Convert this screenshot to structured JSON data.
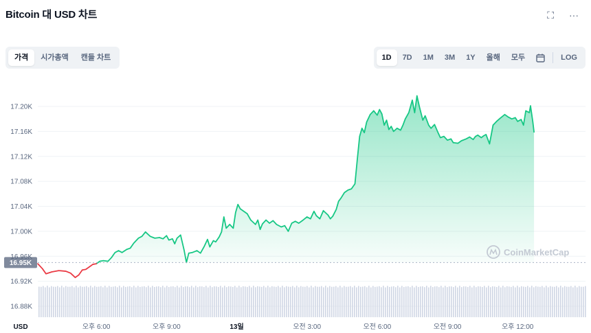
{
  "header": {
    "title": "Bitcoin 대 USD 차트",
    "fullscreen_icon": "fullscreen-icon",
    "more_icon": "more-icon"
  },
  "tabs": [
    {
      "label": "가격",
      "active": true
    },
    {
      "label": "시가총액",
      "active": false
    },
    {
      "label": "캔들 차트",
      "active": false
    }
  ],
  "ranges": [
    {
      "label": "1D",
      "active": true
    },
    {
      "label": "7D",
      "active": false
    },
    {
      "label": "1M",
      "active": false
    },
    {
      "label": "3M",
      "active": false
    },
    {
      "label": "1Y",
      "active": false
    },
    {
      "label": "올해",
      "active": false
    },
    {
      "label": "모두",
      "active": false
    }
  ],
  "calendar_icon": "calendar-icon",
  "log_label": "LOG",
  "watermark": "CoinMarketCap",
  "colors": {
    "up": "#16c784",
    "down": "#ea3943",
    "grid": "#eff2f5",
    "volume": "#cfd6e4"
  },
  "chart_data": {
    "type": "area",
    "title": "Bitcoin 대 USD 차트",
    "currency_label": "USD",
    "y_ticks": [
      "17.20K",
      "17.16K",
      "17.12K",
      "17.08K",
      "17.04K",
      "17.00K",
      "16.96K",
      "16.92K",
      "16.88K"
    ],
    "y_tick_values": [
      17200,
      17160,
      17120,
      17080,
      17040,
      17000,
      16960,
      16920,
      16880
    ],
    "ylim": [
      16870,
      17225
    ],
    "reference_price": 16950,
    "reference_label": "16.95K",
    "x_ticks": [
      {
        "label": "오후 6:00",
        "t": 2.5,
        "bold": false
      },
      {
        "label": "오후 9:00",
        "t": 5.5,
        "bold": false
      },
      {
        "label": "13일",
        "t": 8.5,
        "bold": true
      },
      {
        "label": "오전 3:00",
        "t": 11.5,
        "bold": false
      },
      {
        "label": "오전 6:00",
        "t": 14.5,
        "bold": false
      },
      {
        "label": "오전 9:00",
        "t": 17.5,
        "bold": false
      },
      {
        "label": "오후 12:00",
        "t": 20.5,
        "bold": false
      }
    ],
    "xlim": [
      0,
      23.4
    ],
    "series": [
      {
        "points": [
          [
            0.0,
            16948
          ],
          [
            0.2,
            16940
          ],
          [
            0.35,
            16932
          ],
          [
            0.6,
            16935
          ],
          [
            0.9,
            16937
          ],
          [
            1.2,
            16936
          ],
          [
            1.4,
            16933
          ],
          [
            1.6,
            16926
          ],
          [
            1.75,
            16930
          ],
          [
            1.9,
            16938
          ],
          [
            2.05,
            16939
          ],
          [
            2.2,
            16943
          ],
          [
            2.35,
            16947
          ],
          [
            2.5,
            16948
          ],
          [
            2.65,
            16952
          ],
          [
            2.8,
            16953
          ],
          [
            3.0,
            16952
          ],
          [
            3.15,
            16958
          ],
          [
            3.3,
            16966
          ],
          [
            3.45,
            16969
          ],
          [
            3.6,
            16966
          ],
          [
            3.8,
            16971
          ],
          [
            3.95,
            16973
          ],
          [
            4.1,
            16981
          ],
          [
            4.3,
            16989
          ],
          [
            4.45,
            16992
          ],
          [
            4.6,
            16999
          ],
          [
            4.8,
            16992
          ],
          [
            5.0,
            16989
          ],
          [
            5.2,
            16990
          ],
          [
            5.35,
            16988
          ],
          [
            5.5,
            16993
          ],
          [
            5.6,
            16986
          ],
          [
            5.75,
            16988
          ],
          [
            5.85,
            16980
          ],
          [
            5.95,
            16989
          ],
          [
            6.1,
            16994
          ],
          [
            6.25,
            16970
          ],
          [
            6.35,
            16950
          ],
          [
            6.45,
            16965
          ],
          [
            6.6,
            16966
          ],
          [
            6.8,
            16969
          ],
          [
            6.95,
            16965
          ],
          [
            7.1,
            16975
          ],
          [
            7.25,
            16987
          ],
          [
            7.35,
            16975
          ],
          [
            7.5,
            16985
          ],
          [
            7.6,
            16983
          ],
          [
            7.75,
            16991
          ],
          [
            7.85,
            16999
          ],
          [
            7.95,
            17023
          ],
          [
            8.05,
            17005
          ],
          [
            8.2,
            17011
          ],
          [
            8.35,
            17005
          ],
          [
            8.45,
            17030
          ],
          [
            8.55,
            17043
          ],
          [
            8.65,
            17036
          ],
          [
            8.8,
            17032
          ],
          [
            8.95,
            17028
          ],
          [
            9.1,
            17018
          ],
          [
            9.3,
            17011
          ],
          [
            9.4,
            17018
          ],
          [
            9.5,
            17003
          ],
          [
            9.6,
            17012
          ],
          [
            9.75,
            17018
          ],
          [
            9.9,
            17013
          ],
          [
            10.05,
            17017
          ],
          [
            10.2,
            17011
          ],
          [
            10.4,
            17007
          ],
          [
            10.55,
            17009
          ],
          [
            10.7,
            17000
          ],
          [
            10.85,
            17013
          ],
          [
            11.0,
            17016
          ],
          [
            11.15,
            17013
          ],
          [
            11.3,
            17017
          ],
          [
            11.5,
            17023
          ],
          [
            11.65,
            17020
          ],
          [
            11.8,
            17032
          ],
          [
            11.9,
            17025
          ],
          [
            12.05,
            17020
          ],
          [
            12.2,
            17033
          ],
          [
            12.4,
            17026
          ],
          [
            12.5,
            17020
          ],
          [
            12.6,
            17024
          ],
          [
            12.75,
            17035
          ],
          [
            12.85,
            17048
          ],
          [
            12.95,
            17053
          ],
          [
            13.1,
            17062
          ],
          [
            13.25,
            17066
          ],
          [
            13.4,
            17068
          ],
          [
            13.55,
            17076
          ],
          [
            13.65,
            17115
          ],
          [
            13.75,
            17152
          ],
          [
            13.85,
            17165
          ],
          [
            13.95,
            17158
          ],
          [
            14.05,
            17175
          ],
          [
            14.2,
            17187
          ],
          [
            14.35,
            17193
          ],
          [
            14.5,
            17186
          ],
          [
            14.6,
            17195
          ],
          [
            14.7,
            17188
          ],
          [
            14.8,
            17170
          ],
          [
            14.9,
            17178
          ],
          [
            15.0,
            17163
          ],
          [
            15.1,
            17168
          ],
          [
            15.2,
            17160
          ],
          [
            15.35,
            17165
          ],
          [
            15.5,
            17162
          ],
          [
            15.6,
            17170
          ],
          [
            15.7,
            17180
          ],
          [
            15.85,
            17190
          ],
          [
            16.0,
            17210
          ],
          [
            16.1,
            17190
          ],
          [
            16.2,
            17217
          ],
          [
            16.3,
            17200
          ],
          [
            16.45,
            17178
          ],
          [
            16.55,
            17185
          ],
          [
            16.7,
            17170
          ],
          [
            16.8,
            17165
          ],
          [
            16.95,
            17171
          ],
          [
            17.1,
            17158
          ],
          [
            17.2,
            17150
          ],
          [
            17.35,
            17152
          ],
          [
            17.5,
            17146
          ],
          [
            17.65,
            17148
          ],
          [
            17.75,
            17142
          ],
          [
            17.95,
            17141
          ],
          [
            18.1,
            17145
          ],
          [
            18.3,
            17148
          ],
          [
            18.45,
            17151
          ],
          [
            18.6,
            17147
          ],
          [
            18.7,
            17152
          ],
          [
            18.8,
            17154
          ],
          [
            18.95,
            17150
          ],
          [
            19.05,
            17153
          ],
          [
            19.15,
            17155
          ],
          [
            19.3,
            17140
          ],
          [
            19.45,
            17170
          ],
          [
            19.6,
            17176
          ],
          [
            19.75,
            17181
          ],
          [
            19.95,
            17187
          ],
          [
            20.1,
            17183
          ],
          [
            20.25,
            17180
          ],
          [
            20.4,
            17182
          ],
          [
            20.5,
            17176
          ],
          [
            20.65,
            17179
          ],
          [
            20.75,
            17170
          ],
          [
            20.85,
            17193
          ],
          [
            21.0,
            17190
          ],
          [
            21.05,
            17201
          ],
          [
            21.15,
            17175
          ],
          [
            21.2,
            17159
          ]
        ]
      }
    ],
    "volume_base_level": 16915
  }
}
